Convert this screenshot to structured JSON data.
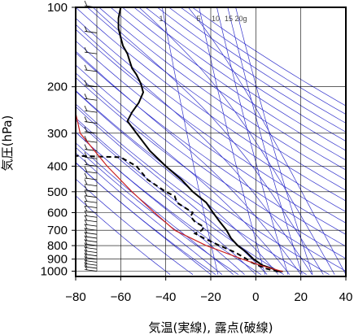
{
  "chart_data": {
    "type": "line",
    "xlabel": "気温(実線), 露点(破線)",
    "ylabel": "気圧(hPa)",
    "xlim": [
      -80,
      40
    ],
    "ylim": [
      1030,
      100
    ],
    "yscale": "log",
    "x_ticks": [
      "−80",
      "−60",
      "−40",
      "−20",
      "0",
      "20",
      "40"
    ],
    "x_tick_values": [
      -80,
      -60,
      -40,
      -20,
      0,
      20,
      40
    ],
    "y_ticks": [
      "100",
      "200",
      "300",
      "400",
      "500",
      "600",
      "700",
      "800",
      "900",
      "1000"
    ],
    "y_tick_values": [
      100,
      200,
      300,
      400,
      500,
      600,
      700,
      800,
      900,
      1000
    ],
    "mixing_ratio_labels": [
      "1",
      "5",
      "10",
      "15",
      "20g"
    ],
    "mixing_ratio_values": [
      1,
      5,
      10,
      15,
      20
    ],
    "grid": true,
    "series": [
      {
        "style": "solid",
        "color": "#000000",
        "points": [
          [
            1003,
            12
          ],
          [
            1000,
            10
          ],
          [
            975,
            7
          ],
          [
            950,
            3
          ],
          [
            925,
            1
          ],
          [
            900,
            -1
          ],
          [
            850,
            -4
          ],
          [
            800,
            -8
          ],
          [
            750,
            -11
          ],
          [
            700,
            -13
          ],
          [
            650,
            -16
          ],
          [
            600,
            -19
          ],
          [
            550,
            -22
          ],
          [
            500,
            -28
          ],
          [
            450,
            -33
          ],
          [
            400,
            -40
          ],
          [
            350,
            -47
          ],
          [
            300,
            -53
          ],
          [
            270,
            -57
          ],
          [
            250,
            -55
          ],
          [
            230,
            -52
          ],
          [
            210,
            -50
          ],
          [
            195,
            -51
          ],
          [
            180,
            -53
          ],
          [
            170,
            -55
          ],
          [
            160,
            -56
          ],
          [
            150,
            -57
          ],
          [
            140,
            -59
          ],
          [
            130,
            -60
          ],
          [
            120,
            -61
          ],
          [
            110,
            -61
          ],
          [
            100,
            -60
          ]
        ]
      },
      {
        "style": "dashed",
        "color": "#000000",
        "points": [
          [
            1003,
            10
          ],
          [
            1000,
            9
          ],
          [
            975,
            4
          ],
          [
            950,
            1
          ],
          [
            925,
            -2
          ],
          [
            900,
            -4
          ],
          [
            850,
            -9
          ],
          [
            800,
            -16
          ],
          [
            750,
            -23
          ],
          [
            720,
            -27
          ],
          [
            700,
            -24
          ],
          [
            680,
            -23
          ],
          [
            650,
            -27
          ],
          [
            620,
            -29
          ],
          [
            600,
            -28
          ],
          [
            550,
            -35
          ],
          [
            520,
            -36
          ],
          [
            500,
            -40
          ],
          [
            450,
            -48
          ],
          [
            400,
            -53
          ],
          [
            370,
            -60
          ],
          [
            365,
            -81
          ]
        ]
      },
      {
        "style": "solid",
        "color": "#cc2222",
        "points": [
          [
            1003,
            12
          ],
          [
            950,
            2
          ],
          [
            900,
            -6
          ],
          [
            800,
            -22
          ],
          [
            700,
            -36
          ],
          [
            600,
            -45
          ],
          [
            500,
            -55
          ],
          [
            400,
            -66
          ],
          [
            300,
            -78
          ],
          [
            230,
            -81
          ]
        ]
      }
    ]
  }
}
